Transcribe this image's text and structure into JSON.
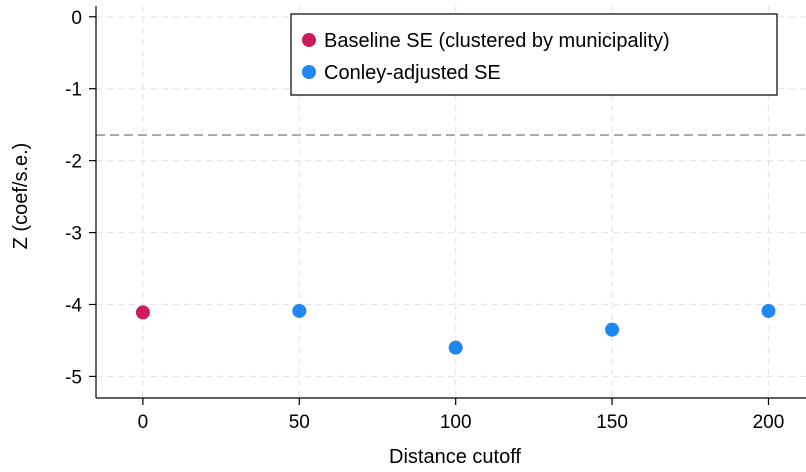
{
  "chart_data": {
    "type": "scatter",
    "title": "",
    "xlabel": "Distance cutoff",
    "ylabel": "Z (coef/s.e.)",
    "xlim": [
      -15,
      212
    ],
    "ylim": [
      -5.3,
      0.15
    ],
    "xticks": [
      0,
      50,
      100,
      150,
      200
    ],
    "yticks": [
      0,
      -1,
      -2,
      -3,
      -4,
      -5
    ],
    "grid": true,
    "legend_position": "top-right",
    "reference_line": {
      "y": -1.645,
      "style": "dashed",
      "color": "#999999"
    },
    "series": [
      {
        "name": "Baseline SE (clustered by municipality)",
        "color": "#cc1a5a",
        "points": [
          {
            "x": 0,
            "y": -4.11
          }
        ]
      },
      {
        "name": "Conley-adjusted SE",
        "color": "#1e88f0",
        "points": [
          {
            "x": 50,
            "y": -4.09
          },
          {
            "x": 100,
            "y": -4.6
          },
          {
            "x": 150,
            "y": -4.35
          },
          {
            "x": 200,
            "y": -4.09
          }
        ]
      }
    ]
  }
}
